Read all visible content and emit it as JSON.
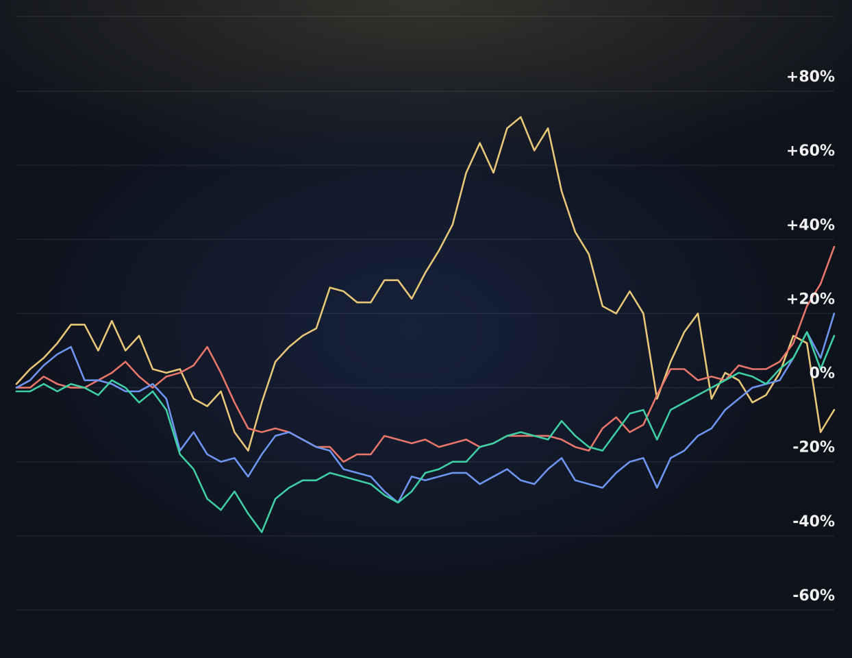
{
  "chart_data": {
    "type": "line",
    "ylim": [
      -60,
      80
    ],
    "y_ticks": [
      80,
      60,
      40,
      20,
      0,
      -20,
      -40,
      -60
    ],
    "y_tick_labels": [
      "+80%",
      "+60%",
      "+40%",
      "+20%",
      "0%",
      "-20%",
      "-40%",
      "-60%"
    ],
    "grid": true,
    "legend": "none",
    "x": [
      0,
      1,
      2,
      3,
      4,
      5,
      6,
      7,
      8,
      9,
      10,
      11,
      12,
      13,
      14,
      15,
      16,
      17,
      18,
      19,
      20,
      21,
      22,
      23,
      24,
      25,
      26,
      27,
      28,
      29,
      30,
      31,
      32,
      33,
      34,
      35,
      36,
      37,
      38,
      39,
      40,
      41,
      42,
      43,
      44,
      45,
      46,
      47,
      48,
      49,
      50,
      51,
      52,
      53,
      54,
      55,
      56,
      57,
      58,
      59,
      60
    ],
    "series": [
      {
        "color": "#e8c878",
        "values": [
          1,
          5,
          8,
          12,
          17,
          17,
          10,
          18,
          10,
          14,
          5,
          4,
          5,
          -3,
          -5,
          -1,
          -12,
          -17,
          -4,
          7,
          11,
          14,
          16,
          27,
          26,
          23,
          23,
          29,
          29,
          24,
          31,
          37,
          44,
          58,
          66,
          58,
          70,
          73,
          64,
          70,
          53,
          42,
          36,
          22,
          20,
          26,
          20,
          -3,
          7,
          15,
          20,
          -3,
          4,
          2,
          -4,
          -2,
          4,
          14,
          12,
          -12,
          -6
        ]
      },
      {
        "color": "#e8766a",
        "values": [
          0,
          0,
          3,
          1,
          0,
          0,
          2,
          4,
          7,
          3,
          0,
          3,
          4,
          6,
          11,
          4,
          -4,
          -11,
          -12,
          -11,
          -12,
          -14,
          -16,
          -16,
          -20,
          -18,
          -18,
          -13,
          -14,
          -15,
          -14,
          -16,
          -15,
          -14,
          -16,
          -15,
          -13,
          -13,
          -13,
          -13,
          -14,
          -16,
          -17,
          -11,
          -8,
          -12,
          -10,
          -2,
          5,
          5,
          2,
          3,
          2,
          6,
          5,
          5,
          7,
          12,
          22,
          28,
          38
        ]
      },
      {
        "color": "#6e95f2",
        "values": [
          0,
          2,
          6,
          9,
          11,
          2,
          2,
          1,
          -1,
          -1,
          1,
          -3,
          -17,
          -12,
          -18,
          -20,
          -19,
          -24,
          -18,
          -13,
          -12,
          -14,
          -16,
          -17,
          -22,
          -23,
          -24,
          -28,
          -31,
          -24,
          -25,
          -24,
          -23,
          -23,
          -26,
          -24,
          -22,
          -25,
          -26,
          -22,
          -19,
          -25,
          -26,
          -27,
          -23,
          -20,
          -19,
          -27,
          -19,
          -17,
          -13,
          -11,
          -6,
          -3,
          0,
          1,
          2,
          8,
          15,
          8,
          20
        ]
      },
      {
        "color": "#3fcfa5",
        "values": [
          -1,
          -1,
          1,
          -1,
          1,
          0,
          -2,
          2,
          0,
          -4,
          -1,
          -6,
          -18,
          -22,
          -30,
          -33,
          -28,
          -34,
          -39,
          -30,
          -27,
          -25,
          -25,
          -23,
          -24,
          -25,
          -26,
          -29,
          -31,
          -28,
          -23,
          -22,
          -20,
          -20,
          -16,
          -15,
          -13,
          -12,
          -13,
          -14,
          -9,
          -13,
          -16,
          -17,
          -12,
          -7,
          -6,
          -14,
          -6,
          -4,
          -2,
          0,
          2,
          4,
          3,
          1,
          5,
          8,
          15,
          5,
          14
        ]
      }
    ]
  }
}
